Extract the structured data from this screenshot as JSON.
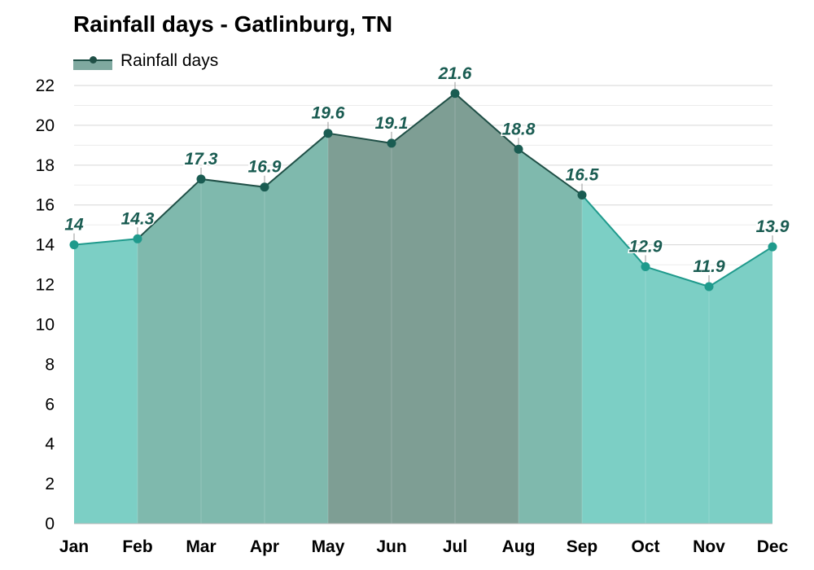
{
  "chart_data": {
    "type": "area",
    "title": "Rainfall days - Gatlinburg, TN",
    "xlabel": "",
    "ylabel": "",
    "categories": [
      "Jan",
      "Feb",
      "Mar",
      "Apr",
      "May",
      "Jun",
      "Jul",
      "Aug",
      "Sep",
      "Oct",
      "Nov",
      "Dec"
    ],
    "series": [
      {
        "name": "Rainfall days",
        "values": [
          14,
          14.3,
          17.3,
          16.9,
          19.6,
          19.1,
          21.6,
          18.8,
          16.5,
          12.9,
          11.9,
          13.9
        ]
      }
    ],
    "data_labels": [
      "14",
      "14.3",
      "17.3",
      "16.9",
      "19.6",
      "19.1",
      "21.6",
      "18.8",
      "16.5",
      "12.9",
      "11.9",
      "13.9"
    ],
    "ylim": [
      0,
      22
    ],
    "yticks": [
      0,
      2,
      4,
      6,
      8,
      10,
      12,
      14,
      16,
      18,
      20,
      22
    ],
    "grid": true,
    "legend": "top-left",
    "colors": {
      "line_dark": "#1f4f46",
      "line_light": "#1f9a8c",
      "marker_dark": "#1a5c52",
      "marker_light": "#1f9a8c",
      "fill_light": "#7ccfc5",
      "fill_mid": "#7fb9ad",
      "fill_dark": "#7e9e94",
      "label": "#1a5c52"
    }
  }
}
